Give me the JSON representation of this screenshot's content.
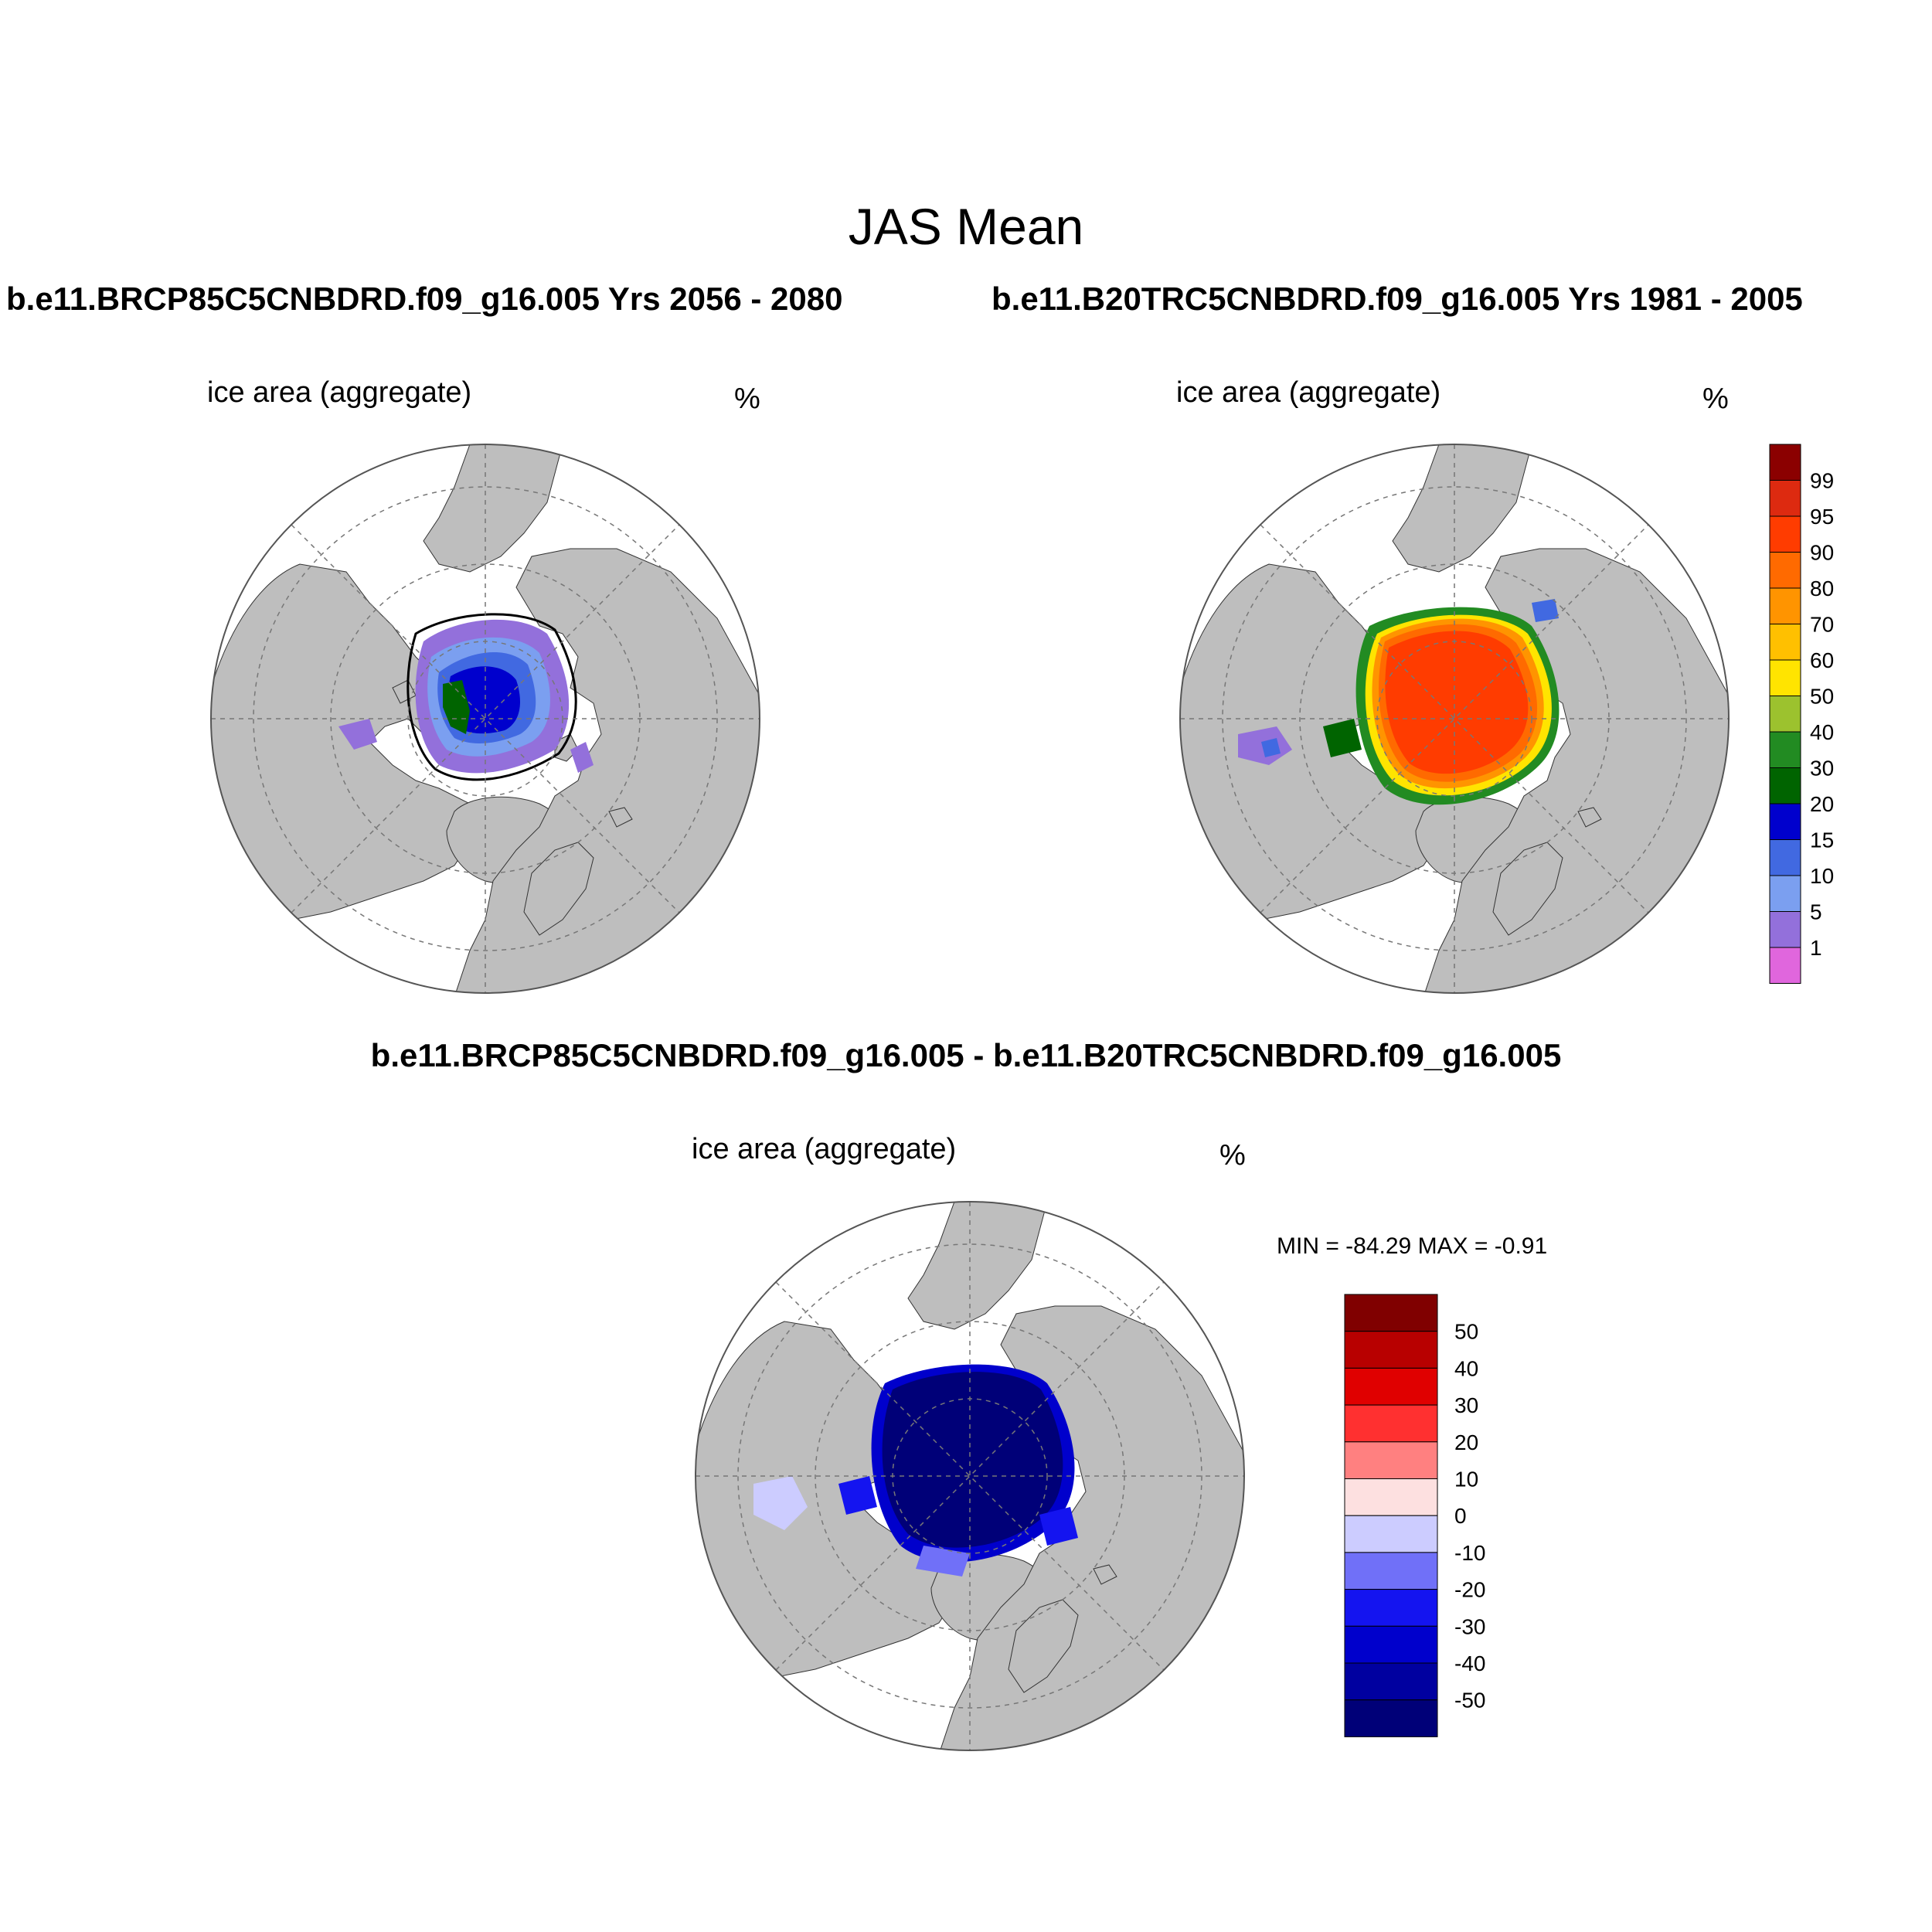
{
  "title": "JAS Mean",
  "panels": {
    "left": {
      "title": "b.e11.BRCP85C5CNBDRD.f09_g16.005  Yrs 2056 - 2080",
      "variable": "ice area  (aggregate)",
      "units": "%"
    },
    "right": {
      "title": "b.e11.B20TRC5CNBDRD.f09_g16.005  Yrs 1981 - 2005",
      "variable": "ice area  (aggregate)",
      "units": "%"
    },
    "diff": {
      "title": "b.e11.BRCP85C5CNBDRD.f09_g16.005 - b.e11.B20TRC5CNBDRD.f09_g16.005",
      "variable": "ice area  (aggregate)",
      "units": "%",
      "minmax": "MIN = -84.29 MAX =  -0.91"
    }
  },
  "colorbar_ice": {
    "labels": [
      "99",
      "95",
      "90",
      "80",
      "70",
      "60",
      "50",
      "40",
      "30",
      "20",
      "15",
      "10",
      "5",
      "1"
    ],
    "colors": [
      "#8b0000",
      "#dd2a10",
      "#ff3c00",
      "#ff6a00",
      "#ff9400",
      "#ffc000",
      "#ffe400",
      "#9cc22e",
      "#228b22",
      "#006400",
      "#0000cd",
      "#4169e1",
      "#7b9ff0",
      "#9370db",
      "#e066dd"
    ]
  },
  "colorbar_diff": {
    "labels": [
      "50",
      "40",
      "30",
      "20",
      "10",
      "0",
      "-10",
      "-20",
      "-30",
      "-40",
      "-50"
    ],
    "colors": [
      "#800000",
      "#b80000",
      "#e00000",
      "#ff3030",
      "#ff8080",
      "#fde0e0",
      "#ccccff",
      "#7070f8",
      "#1414f0",
      "#0000cc",
      "#0000a0",
      "#000078"
    ]
  },
  "map_colors": {
    "land": "#bebebe",
    "ocean": "#ffffff",
    "grid": "#777777"
  }
}
